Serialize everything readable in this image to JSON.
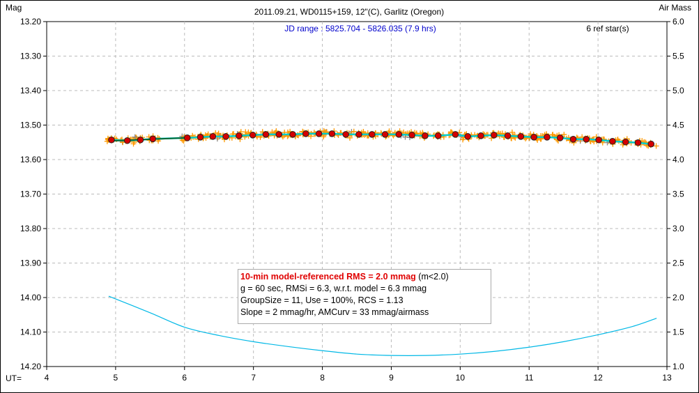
{
  "chart_data": {
    "type": "scatter",
    "title": "2011.09.21, WD0115+159, 12\"(C), Garlitz (Oregon)",
    "subtitle": "JD range : 5825.704 - 5826.035 (7.9 hrs)",
    "annotation_right": "6 ref star(s)",
    "ylabel": "Mag",
    "y2label": "Air Mass",
    "xlabel": "UT=",
    "xlim": [
      4,
      13
    ],
    "ylim": [
      13.2,
      14.2
    ],
    "y_inverted": true,
    "y2lim": [
      1.0,
      6.0
    ],
    "grid": true,
    "x_ticks": [
      "4",
      "5",
      "6",
      "7",
      "8",
      "9",
      "10",
      "11",
      "12",
      "13"
    ],
    "y_ticks": [
      "13.20",
      "13.30",
      "13.40",
      "13.50",
      "13.60",
      "13.70",
      "13.80",
      "13.90",
      "14.00",
      "14.10",
      "14.20"
    ],
    "y2_ticks": [
      "6.0",
      "5.5",
      "5.0",
      "4.5",
      "4.0",
      "3.5",
      "3.0",
      "2.5",
      "2.0",
      "1.5",
      "1.0"
    ],
    "colors": {
      "group_means": "#d40000",
      "individual": "#ff9900",
      "rejected": "#888888",
      "model": "#00cccc",
      "trend": "#006633",
      "airmass": "#00b8e6",
      "subtitle": "#0000cc"
    },
    "series": [
      {
        "role": "group means",
        "x": [
          4.94,
          5.17,
          5.36,
          5.54,
          6.04,
          6.23,
          6.41,
          6.6,
          6.79,
          6.99,
          7.18,
          7.37,
          7.57,
          7.76,
          7.95,
          8.14,
          8.34,
          8.53,
          8.72,
          8.91,
          9.11,
          9.3,
          9.49,
          9.68,
          9.93,
          10.11,
          10.3,
          10.49,
          10.69,
          10.88,
          11.07,
          11.26,
          11.45,
          11.64,
          11.83,
          12.01,
          12.21,
          12.4,
          12.58,
          12.77
        ],
        "y": [
          13.543,
          13.545,
          13.543,
          13.54,
          13.537,
          13.535,
          13.533,
          13.533,
          13.531,
          13.529,
          13.527,
          13.527,
          13.527,
          13.525,
          13.525,
          13.525,
          13.527,
          13.527,
          13.527,
          13.527,
          13.527,
          13.529,
          13.531,
          13.531,
          13.527,
          13.533,
          13.531,
          13.529,
          13.531,
          13.533,
          13.535,
          13.535,
          13.537,
          13.541,
          13.541,
          13.543,
          13.547,
          13.549,
          13.551,
          13.555
        ]
      },
      {
        "role": "air mass",
        "x": [
          4.9,
          5.5,
          6.0,
          6.5,
          7.0,
          7.5,
          8.0,
          8.5,
          9.0,
          9.5,
          10.0,
          10.5,
          11.0,
          11.5,
          12.0,
          12.5,
          12.85
        ],
        "y": [
          2.02,
          1.78,
          1.57,
          1.45,
          1.36,
          1.29,
          1.23,
          1.18,
          1.16,
          1.16,
          1.18,
          1.22,
          1.28,
          1.36,
          1.46,
          1.58,
          1.7
        ]
      }
    ],
    "legend": {
      "headline": "10-min model-referenced RMS = 2.0 mmag",
      "headline_suffix": " (m<2.0)",
      "lines": [
        "g = 60 sec, RMSi = 6.3, w.r.t. model = 6.3 mmag",
        "GroupSize = 11, Use = 100%, RCS = 1.13",
        "Slope = 2 mmag/hr, AMCurv = 33 mmag/airmass"
      ],
      "placement": "bottom-center"
    }
  }
}
